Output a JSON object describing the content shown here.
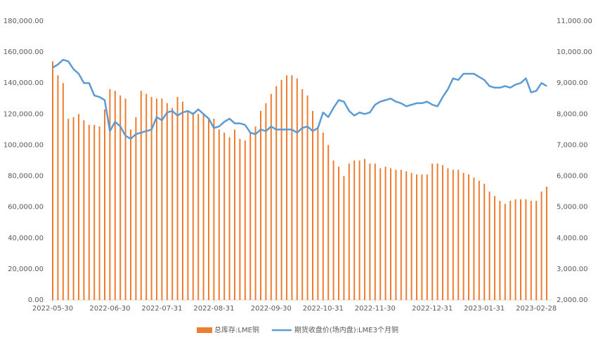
{
  "chart_data": {
    "type": "bar-line",
    "categories": [
      "2022-05-30",
      null,
      null,
      null,
      null,
      null,
      null,
      null,
      null,
      null,
      null,
      "2022-06-30",
      null,
      null,
      null,
      null,
      null,
      null,
      null,
      null,
      null,
      "2022-07-31",
      null,
      null,
      null,
      null,
      null,
      null,
      null,
      null,
      null,
      "2022-08-31",
      null,
      null,
      null,
      null,
      null,
      null,
      null,
      null,
      null,
      null,
      "2022-09-30",
      null,
      null,
      null,
      null,
      null,
      null,
      null,
      null,
      null,
      "2022-10-31",
      null,
      null,
      null,
      null,
      null,
      null,
      null,
      null,
      null,
      "2022-11-30",
      null,
      null,
      null,
      null,
      null,
      null,
      null,
      null,
      null,
      null,
      "2022-12-31",
      null,
      null,
      null,
      null,
      null,
      null,
      null,
      null,
      null,
      "2023-01-31",
      null,
      null,
      null,
      null,
      null,
      null,
      null,
      null,
      null,
      "2023-02-28",
      null,
      null
    ],
    "series": [
      {
        "name": "总库存:LME铜",
        "type": "bar",
        "color": "#ed7d31",
        "values": [
          154000,
          145000,
          140000,
          117000,
          118000,
          120000,
          116000,
          113000,
          113000,
          112000,
          123000,
          136000,
          135000,
          132000,
          130000,
          110000,
          118000,
          135000,
          133000,
          131000,
          130000,
          130000,
          127000,
          124000,
          131000,
          128000,
          122000,
          121000,
          120000,
          120000,
          117000,
          117000,
          110000,
          108000,
          105000,
          110000,
          104000,
          103000,
          108000,
          112000,
          122000,
          127000,
          133000,
          138000,
          142000,
          145000,
          145000,
          143000,
          136000,
          132000,
          122000,
          112000,
          108000,
          100000,
          90000,
          86000,
          80000,
          88000,
          90000,
          90000,
          91000,
          88000,
          88000,
          85000,
          86000,
          85000,
          84000,
          84000,
          83000,
          82000,
          81000,
          81000,
          81000,
          88000,
          88000,
          87000,
          85000,
          84000,
          84000,
          82000,
          81000,
          79000,
          77000,
          75000,
          70000,
          67000,
          64000,
          62000,
          64000,
          65000,
          65000,
          65000,
          64000,
          64000,
          70000,
          73000
        ]
      },
      {
        "name": "期货收盘价(场内盘):LME3个月铜",
        "type": "line",
        "axis": "y2",
        "color": "#5b9bd5",
        "values": [
          9500,
          9600,
          9750,
          9700,
          9450,
          9300,
          9000,
          9000,
          8600,
          8550,
          8450,
          7450,
          7750,
          7600,
          7300,
          7200,
          7350,
          7400,
          7450,
          7500,
          7900,
          7800,
          8050,
          8100,
          7950,
          8050,
          8100,
          8000,
          8150,
          8000,
          7850,
          7550,
          7600,
          7750,
          7850,
          7700,
          7700,
          7650,
          7400,
          7350,
          7500,
          7450,
          7600,
          7500,
          7500,
          7500,
          7500,
          7400,
          7550,
          7600,
          7450,
          7550,
          8050,
          7900,
          8200,
          8450,
          8400,
          8100,
          7950,
          8050,
          8000,
          8050,
          8300,
          8400,
          8450,
          8500,
          8400,
          8350,
          8250,
          8300,
          8350,
          8350,
          8400,
          8300,
          8250,
          8550,
          8800,
          9150,
          9100,
          9300,
          9300,
          9300,
          9200,
          9100,
          8900,
          8850,
          8850,
          8900,
          8850,
          8950,
          9000,
          9150,
          8700,
          8750,
          9000,
          8900
        ]
      }
    ],
    "ylim": [
      0,
      180000
    ],
    "yticks": [
      {
        "value": 0,
        "label": "0.00"
      },
      {
        "value": 20000,
        "label": "20,000.00"
      },
      {
        "value": 40000,
        "label": "40,000.00"
      },
      {
        "value": 60000,
        "label": "60,000.00"
      },
      {
        "value": 80000,
        "label": "80,000.00"
      },
      {
        "value": 100000,
        "label": "100,000.00"
      },
      {
        "value": 120000,
        "label": "120,000.00"
      },
      {
        "value": 140000,
        "label": "140,000.00"
      },
      {
        "value": 160000,
        "label": "160,000.00"
      },
      {
        "value": 180000,
        "label": "180,000.00"
      }
    ],
    "y2lim": [
      2000,
      11000
    ],
    "y2ticks": [
      {
        "value": 2000,
        "label": "2,000.00"
      },
      {
        "value": 3000,
        "label": "3,000.00"
      },
      {
        "value": 4000,
        "label": "4,000.00"
      },
      {
        "value": 5000,
        "label": "5,000.00"
      },
      {
        "value": 6000,
        "label": "6,000.00"
      },
      {
        "value": 7000,
        "label": "7,000.00"
      },
      {
        "value": 8000,
        "label": "8,000.00"
      },
      {
        "value": 9000,
        "label": "9,000.00"
      },
      {
        "value": 10000,
        "label": "10,000.00"
      },
      {
        "value": 11000,
        "label": "11,000.00"
      }
    ],
    "legend": "bottom"
  }
}
